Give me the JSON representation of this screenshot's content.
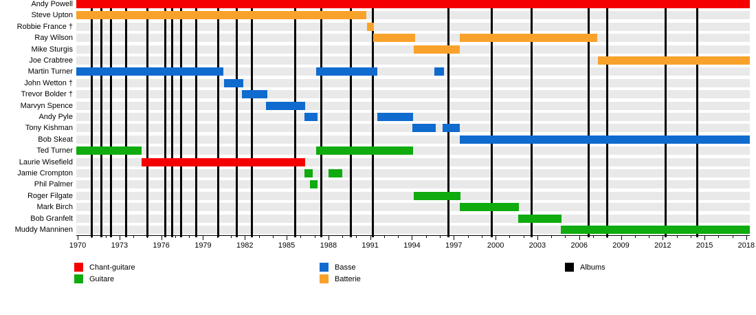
{
  "chart_data": {
    "type": "bar",
    "variant": "band-membership-gantt-timeline",
    "title": "",
    "axis": {
      "min": 1969.9,
      "max": 2018.25,
      "tick_labels": [
        "1970",
        "1973",
        "1976",
        "1979",
        "1982",
        "1985",
        "1988",
        "1991",
        "1994",
        "1997",
        "2000",
        "2003",
        "2006",
        "2009",
        "2012",
        "2015",
        "2018"
      ],
      "tick_years": [
        1970,
        1973,
        1976,
        1979,
        1982,
        1985,
        1988,
        1991,
        1994,
        1997,
        2000,
        2003,
        2006,
        2009,
        2012,
        2015,
        2018
      ],
      "minor_tick_step": 1,
      "grid": false
    },
    "colors": {
      "chant-guitare": "#f40000",
      "guitare": "#0fab0f",
      "basse": "#0f6bce",
      "batterie": "#f9a22b",
      "albums": "#000000",
      "row_band": "#e9e9e9"
    },
    "rows": [
      {
        "name": "Andy Powell",
        "bars": [
          {
            "start": 1969.9,
            "end": 2018.25,
            "role": "chant-guitare"
          }
        ]
      },
      {
        "name": "Steve Upton",
        "bars": [
          {
            "start": 1969.9,
            "end": 1990.7,
            "role": "batterie"
          }
        ]
      },
      {
        "name": "Robbie France †",
        "bars": [
          {
            "start": 1990.75,
            "end": 1991.25,
            "role": "batterie"
          }
        ]
      },
      {
        "name": "Ray Wilson",
        "bars": [
          {
            "start": 1991.2,
            "end": 1994.2,
            "role": "batterie"
          },
          {
            "start": 1997.45,
            "end": 2007.3,
            "role": "batterie"
          }
        ]
      },
      {
        "name": "Mike Sturgis",
        "bars": [
          {
            "start": 1994.1,
            "end": 1997.45,
            "role": "batterie"
          }
        ]
      },
      {
        "name": "Joe Crabtree",
        "bars": [
          {
            "start": 2007.35,
            "end": 2018.25,
            "role": "batterie"
          }
        ]
      },
      {
        "name": "Martin Turner",
        "bars": [
          {
            "start": 1969.9,
            "end": 1980.45,
            "role": "basse"
          },
          {
            "start": 1987.1,
            "end": 1991.5,
            "role": "basse"
          },
          {
            "start": 1995.6,
            "end": 1996.3,
            "role": "basse"
          }
        ]
      },
      {
        "name": "John Wetton †",
        "bars": [
          {
            "start": 1980.5,
            "end": 1981.9,
            "role": "basse"
          }
        ]
      },
      {
        "name": "Trevor Bolder †",
        "bars": [
          {
            "start": 1981.8,
            "end": 1983.6,
            "role": "basse"
          }
        ]
      },
      {
        "name": "Marvyn Spence",
        "bars": [
          {
            "start": 1983.5,
            "end": 1986.35,
            "role": "basse"
          }
        ]
      },
      {
        "name": "Andy Pyle",
        "bars": [
          {
            "start": 1986.3,
            "end": 1987.2,
            "role": "basse"
          },
          {
            "start": 1991.5,
            "end": 1994.1,
            "role": "basse"
          }
        ]
      },
      {
        "name": "Tony Kishman",
        "bars": [
          {
            "start": 1994.05,
            "end": 1995.7,
            "role": "basse"
          },
          {
            "start": 1996.2,
            "end": 1997.45,
            "role": "basse"
          }
        ]
      },
      {
        "name": "Bob Skeat",
        "bars": [
          {
            "start": 1997.45,
            "end": 2018.25,
            "role": "basse"
          }
        ]
      },
      {
        "name": "Ted Turner",
        "bars": [
          {
            "start": 1969.9,
            "end": 1974.6,
            "role": "guitare"
          },
          {
            "start": 1987.1,
            "end": 1994.1,
            "role": "guitare"
          }
        ]
      },
      {
        "name": "Laurie Wisefield",
        "bars": [
          {
            "start": 1974.6,
            "end": 1986.35,
            "role": "chant-guitare"
          }
        ]
      },
      {
        "name": "Jamie Crompton",
        "bars": [
          {
            "start": 1986.3,
            "end": 1986.85,
            "role": "guitare"
          },
          {
            "start": 1988.0,
            "end": 1989.0,
            "role": "guitare"
          }
        ]
      },
      {
        "name": "Phil Palmer",
        "bars": [
          {
            "start": 1986.65,
            "end": 1987.2,
            "role": "guitare"
          }
        ]
      },
      {
        "name": "Roger Filgate",
        "bars": [
          {
            "start": 1994.1,
            "end": 1997.5,
            "role": "guitare"
          }
        ]
      },
      {
        "name": "Mark Birch",
        "bars": [
          {
            "start": 1997.45,
            "end": 2001.65,
            "role": "guitare"
          }
        ]
      },
      {
        "name": "Bob Granfelt",
        "bars": [
          {
            "start": 2001.6,
            "end": 2004.75,
            "role": "guitare"
          }
        ]
      },
      {
        "name": "Muddy Manninen",
        "bars": [
          {
            "start": 2004.7,
            "end": 2018.25,
            "role": "guitare"
          }
        ]
      }
    ],
    "albums_marker_years": [
      1971.0,
      1971.7,
      1972.4,
      1973.5,
      1975.0,
      1976.3,
      1976.8,
      1977.4,
      1978.5,
      1980.1,
      1981.4,
      1982.5,
      1985.6,
      1987.5,
      1989.6,
      1991.2,
      1996.6,
      1999.7,
      2002.6,
      2006.7,
      2008.0,
      2012.2,
      2014.5
    ],
    "legend": {
      "columns": [
        [
          {
            "label": "Chant-guitare",
            "color_key": "chant-guitare"
          },
          {
            "label": "Guitare",
            "color_key": "guitare"
          }
        ],
        [
          {
            "label": "Basse",
            "color_key": "basse"
          },
          {
            "label": "Batterie",
            "color_key": "batterie"
          }
        ],
        [
          {
            "label": "Albums",
            "color_key": "albums"
          }
        ]
      ]
    }
  }
}
